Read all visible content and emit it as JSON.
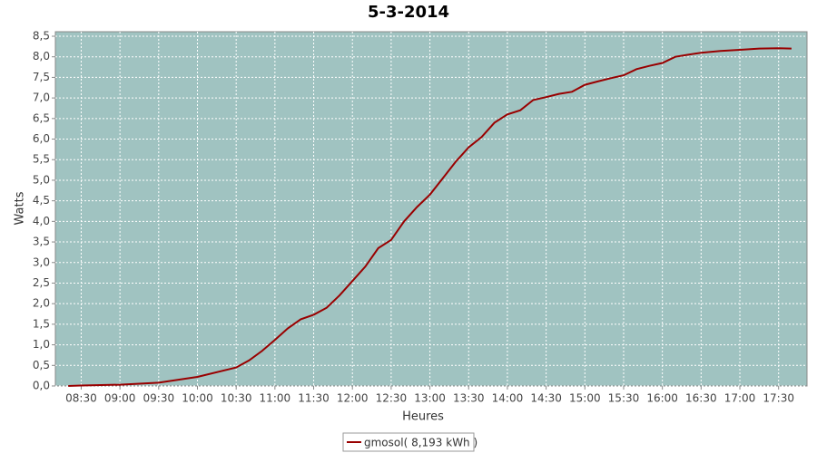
{
  "chart_data": {
    "type": "line",
    "title": "5-3-2014",
    "x_label": "Heures",
    "y_label": "Watts",
    "x": [
      "08:20",
      "08:30",
      "09:00",
      "09:30",
      "10:00",
      "10:30",
      "10:40",
      "10:50",
      "11:00",
      "11:10",
      "11:20",
      "11:30",
      "11:40",
      "11:50",
      "12:00",
      "12:10",
      "12:20",
      "12:30",
      "12:40",
      "12:50",
      "13:00",
      "13:10",
      "13:20",
      "13:30",
      "13:40",
      "13:50",
      "14:00",
      "14:10",
      "14:20",
      "14:30",
      "14:40",
      "14:50",
      "15:00",
      "15:10",
      "15:20",
      "15:30",
      "15:40",
      "15:50",
      "16:00",
      "16:10",
      "16:20",
      "16:30",
      "16:45",
      "17:00",
      "17:15",
      "17:30",
      "17:40"
    ],
    "series": [
      {
        "name": "gmosol( 8,193 kWh )",
        "color": "#990000",
        "values": [
          0.0,
          0.01,
          0.03,
          0.08,
          0.22,
          0.45,
          0.62,
          0.85,
          1.12,
          1.4,
          1.62,
          1.73,
          1.9,
          2.2,
          2.55,
          2.9,
          3.35,
          3.55,
          4.0,
          4.35,
          4.65,
          5.05,
          5.45,
          5.8,
          6.05,
          6.4,
          6.6,
          6.7,
          6.95,
          7.02,
          7.1,
          7.15,
          7.32,
          7.4,
          7.48,
          7.55,
          7.7,
          7.78,
          7.85,
          8.0,
          8.05,
          8.1,
          8.14,
          8.17,
          8.2,
          8.21,
          8.2
        ]
      }
    ],
    "xlim": [
      "08:10",
      "17:52"
    ],
    "xticks": [
      "08:30",
      "09:00",
      "09:30",
      "10:00",
      "10:30",
      "11:00",
      "11:30",
      "12:00",
      "12:30",
      "13:00",
      "13:30",
      "14:00",
      "14:30",
      "15:00",
      "15:30",
      "16:00",
      "16:30",
      "17:00",
      "17:30"
    ],
    "ylim": [
      0,
      8.61
    ],
    "yticks": [
      {
        "value": 0,
        "label": "0,0"
      },
      {
        "value": 0.5,
        "label": "0,5"
      },
      {
        "value": 1,
        "label": "1,0"
      },
      {
        "value": 1.5,
        "label": "1,5"
      },
      {
        "value": 2,
        "label": "2,0"
      },
      {
        "value": 2.5,
        "label": "2,5"
      },
      {
        "value": 3,
        "label": "3,0"
      },
      {
        "value": 3.5,
        "label": "3,5"
      },
      {
        "value": 4,
        "label": "4,0"
      },
      {
        "value": 4.5,
        "label": "4,5"
      },
      {
        "value": 5,
        "label": "5,0"
      },
      {
        "value": 5.5,
        "label": "5,5"
      },
      {
        "value": 6,
        "label": "6,0"
      },
      {
        "value": 6.5,
        "label": "6,5"
      },
      {
        "value": 7,
        "label": "7,0"
      },
      {
        "value": 7.5,
        "label": "7,5"
      },
      {
        "value": 8,
        "label": "8,0"
      },
      {
        "value": 8.5,
        "label": "8,5"
      }
    ],
    "grid": true,
    "plot_background": "#a0c3c1",
    "legend": "bottom"
  }
}
